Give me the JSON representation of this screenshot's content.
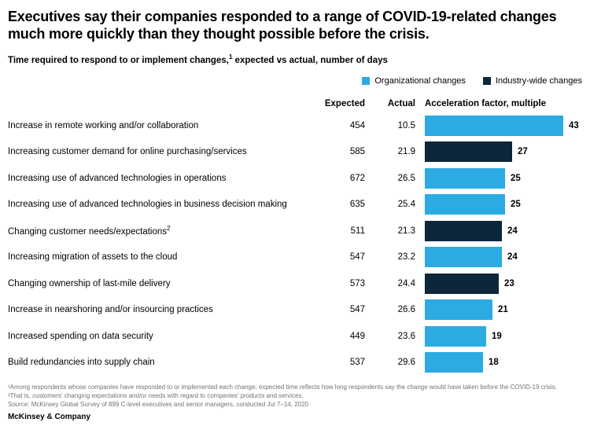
{
  "header": {
    "title": "Executives say their companies responded to a range of COVID-19-related changes much more quickly than they thought possible before the crisis.",
    "subtitle_bold": "Time required to respond to or implement changes,",
    "subtitle_sup": "1",
    "subtitle_rest": " expected vs actual, number of days"
  },
  "legend": [
    {
      "label": "Organizational changes",
      "color": "#2BABE2",
      "key": "organizational"
    },
    {
      "label": "Industry-wide changes",
      "color": "#0B2739",
      "key": "industry-wide"
    }
  ],
  "columns": {
    "expected": "Expected",
    "actual": "Actual",
    "factor": "Acceleration factor, multiple"
  },
  "chart_data": {
    "type": "bar",
    "orientation": "horizontal",
    "value_plotted": "acceleration_factor",
    "bar_scale_max": 43,
    "legend_entries": [
      "Organizational changes",
      "Industry-wide changes"
    ],
    "column_headers": [
      "Expected",
      "Actual",
      "Acceleration factor, multiple"
    ],
    "rows": [
      {
        "label": "Increase in remote working and/or collaboration",
        "expected": 454,
        "actual": 10.5,
        "factor": 43,
        "category": "organizational"
      },
      {
        "label": "Increasing customer demand for online purchasing/services",
        "expected": 585,
        "actual": 21.9,
        "factor": 27,
        "category": "industry-wide"
      },
      {
        "label": "Increasing use of advanced technologies in operations",
        "expected": 672,
        "actual": 26.5,
        "factor": 25,
        "category": "organizational"
      },
      {
        "label": "Increasing use of advanced technologies in business decision making",
        "expected": 635,
        "actual": 25.4,
        "factor": 25,
        "category": "organizational"
      },
      {
        "label": "Changing customer needs/expectations",
        "label_sup": "2",
        "expected": 511,
        "actual": 21.3,
        "factor": 24,
        "category": "industry-wide"
      },
      {
        "label": "Increasing migration of assets to the cloud",
        "expected": 547,
        "actual": 23.2,
        "factor": 24,
        "category": "organizational"
      },
      {
        "label": "Changing ownership of last-mile delivery",
        "expected": 573,
        "actual": 24.4,
        "factor": 23,
        "category": "industry-wide"
      },
      {
        "label": "Increase in nearshoring and/or insourcing practices",
        "expected": 547,
        "actual": 26.6,
        "factor": 21,
        "category": "organizational"
      },
      {
        "label": "Increased spending on data security",
        "expected": 449,
        "actual": 23.6,
        "factor": 19,
        "category": "organizational"
      },
      {
        "label": "Build redundancies into supply chain",
        "expected": 537,
        "actual": 29.6,
        "factor": 18,
        "category": "organizational"
      }
    ]
  },
  "footnotes": [
    "¹Among respondents whose companies have responded to or implemented each change; expected time reflects how long respondents say the change would have taken before the COVID-19 crisis.",
    "²That is, customers' changing expectations and/or needs with regard to companies' products and services.",
    "Source: McKinsey Global Survey of 899 C-level executives and senior managers, conducted Jul 7–14, 2020"
  ],
  "brand": "McKinsey & Company",
  "colors": {
    "organizational_blue": "#2BABE2",
    "industry_navy": "#0B2739",
    "footnote_gray": "#737373"
  }
}
